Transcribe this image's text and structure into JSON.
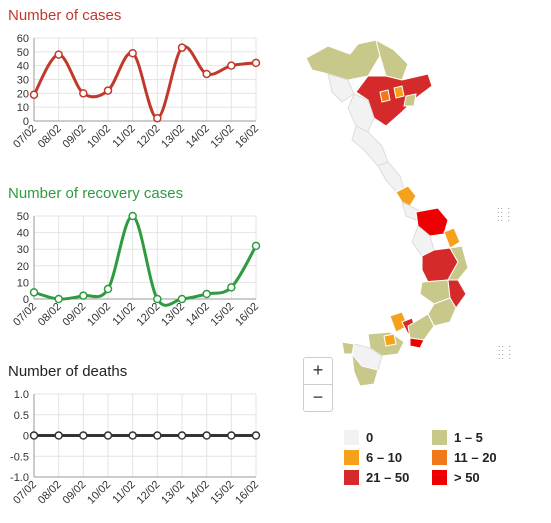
{
  "chart_data": [
    {
      "type": "line",
      "title": "Number of cases",
      "categories": [
        "07/02",
        "08/02",
        "09/02",
        "10/02",
        "11/02",
        "12/02",
        "13/02",
        "14/02",
        "15/02",
        "16/02"
      ],
      "values": [
        19,
        48,
        20,
        22,
        49,
        2,
        53,
        34,
        40,
        42
      ],
      "ylim": [
        0,
        60
      ],
      "yticks": [
        0,
        10,
        20,
        30,
        40,
        50,
        60
      ],
      "color": "#c0392b",
      "grid": true
    },
    {
      "type": "line",
      "title": "Number of recovery cases",
      "categories": [
        "07/02",
        "08/02",
        "09/02",
        "10/02",
        "11/02",
        "12/02",
        "13/02",
        "14/02",
        "15/02",
        "16/02"
      ],
      "values": [
        4,
        0,
        2,
        6,
        50,
        0,
        0,
        3,
        7,
        32
      ],
      "ylim": [
        0,
        50
      ],
      "yticks": [
        0,
        10,
        20,
        30,
        40,
        50
      ],
      "color": "#2e9b3f",
      "grid": true
    },
    {
      "type": "line",
      "title": "Number of deaths",
      "categories": [
        "07/02",
        "08/02",
        "09/02",
        "10/02",
        "11/02",
        "12/02",
        "13/02",
        "14/02",
        "15/02",
        "16/02"
      ],
      "values": [
        0,
        0,
        0,
        0,
        0,
        0,
        0,
        0,
        0,
        0
      ],
      "ylim": [
        -1,
        1
      ],
      "yticks": [
        -1.0,
        -0.5,
        0,
        0.5,
        1.0
      ],
      "ytick_labels": [
        "-1.0",
        "-0.5",
        "0",
        "0.5",
        "1.0"
      ],
      "color": "#333333",
      "grid": true
    }
  ],
  "map": {
    "zoom_in_label": "+",
    "zoom_out_label": "−",
    "legend": [
      {
        "label": "0",
        "color": "#f2f2f2"
      },
      {
        "label": "1 – 5",
        "color": "#c8c88a"
      },
      {
        "label": "6 – 10",
        "color": "#f5a11c"
      },
      {
        "label": "11 – 20",
        "color": "#f07a1a"
      },
      {
        "label": "21 – 50",
        "color": "#d42a2a"
      },
      {
        "label": "> 50",
        "color": "#ee0000"
      }
    ]
  }
}
